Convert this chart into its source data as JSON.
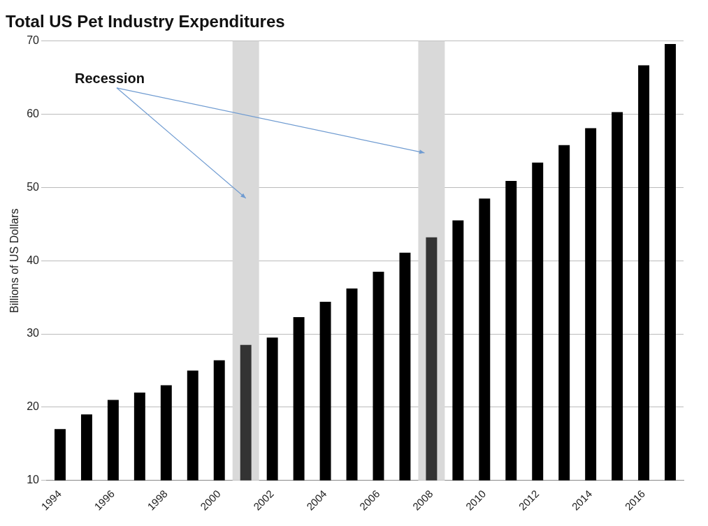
{
  "chart_data": {
    "type": "bar",
    "title": "Total US Pet Industry Expenditures",
    "ylabel": "Billions of US Dollars",
    "categories": [
      "1994",
      null,
      "1996",
      null,
      "1998",
      null,
      "2000",
      null,
      "2002",
      null,
      "2004",
      null,
      "2006",
      null,
      "2008",
      null,
      "2010",
      null,
      "2012",
      null,
      "2014",
      null,
      "2016",
      null
    ],
    "values": [
      17,
      19,
      21,
      22,
      23,
      25,
      26.4,
      28.5,
      29.5,
      32.3,
      34.4,
      36.2,
      38.5,
      41.1,
      43.2,
      45.5,
      48.5,
      50.9,
      53.4,
      55.8,
      58.1,
      60.3,
      66.7,
      69.6
    ],
    "colors": [
      "#000000",
      "#000000",
      "#000000",
      "#000000",
      "#000000",
      "#000000",
      "#000000",
      "#333333",
      "#000000",
      "#000000",
      "#000000",
      "#000000",
      "#000000",
      "#000000",
      "#333333",
      "#000000",
      "#000000",
      "#000000",
      "#000000",
      "#000000",
      "#000000",
      "#000000",
      "#000000",
      "#000000"
    ],
    "ylim": [
      10,
      70
    ],
    "yticks": [
      10,
      20,
      30,
      40,
      50,
      60,
      70
    ],
    "grid": "y",
    "legend": false,
    "bands": [
      {
        "axis": "x",
        "from": "2000",
        "to": "2002",
        "color": "#d9d9d9"
      },
      {
        "axis": "x",
        "from": "2008",
        "to": "2008",
        "color": "#d9d9d9"
      }
    ],
    "annotations": [
      "Recession"
    ]
  }
}
